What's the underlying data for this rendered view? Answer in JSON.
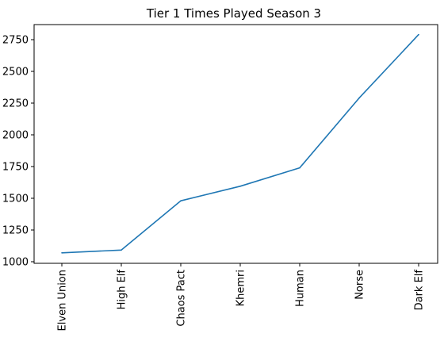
{
  "chart_data": {
    "type": "line",
    "title": "Tier 1 Times Played Season 3",
    "xlabel": "",
    "ylabel": "",
    "categories": [
      "Elven Union",
      "High Elf",
      "Chaos Pact",
      "Khemri",
      "Human",
      "Norse",
      "Dark Elf"
    ],
    "series": [
      {
        "values": [
          1070,
          1092,
          1480,
          1595,
          1740,
          2290,
          2790
        ]
      }
    ],
    "yticks": [
      "1000",
      "1250",
      "1500",
      "1750",
      "2000",
      "2250",
      "2500",
      "2750"
    ],
    "ylim": [
      1000,
      2800
    ],
    "grid": false,
    "line_color": "#1f77b4"
  }
}
